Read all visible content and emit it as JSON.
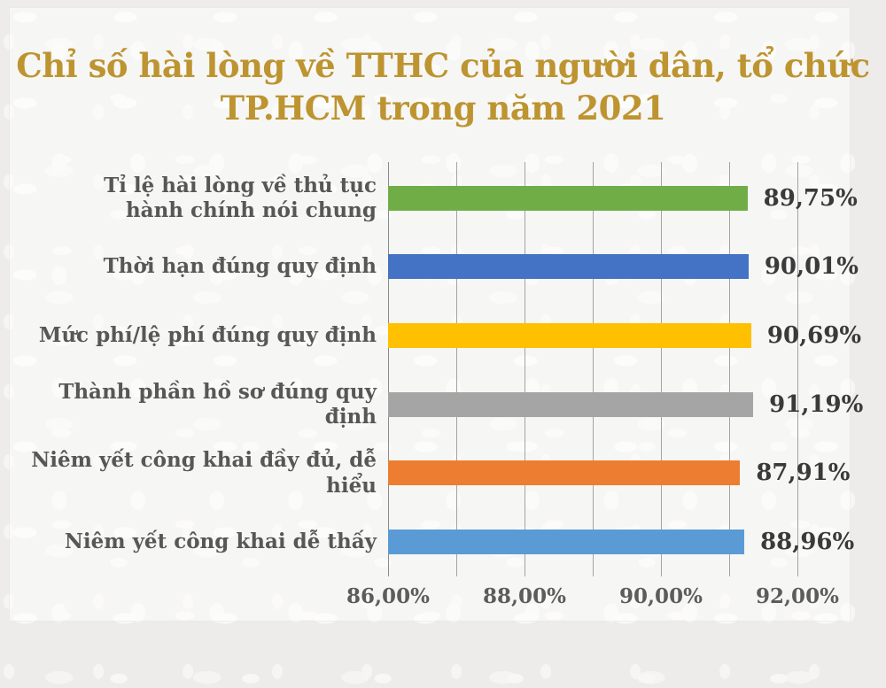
{
  "title": {
    "line1": "Chỉ số hài lòng về TTHC của người dân, tổ chức",
    "line2": "TP.HCM trong năm 2021"
  },
  "chart_data": {
    "type": "bar",
    "orientation": "horizontal",
    "title": "Chỉ số hài lòng về TTHC của người dân, tổ chức TP.HCM trong năm 2021",
    "categories": [
      "Tỉ lệ hài lòng về thủ tục hành chính nói chung",
      "Thời hạn đúng quy định",
      "Mức phí/lệ phí đúng quy định",
      "Thành phần hồ sơ đúng quy định",
      "Niêm yết công khai đầy đủ, dễ hiểu",
      "Niêm yết công khai dễ thấy"
    ],
    "values": [
      89.75,
      90.01,
      90.69,
      91.19,
      87.91,
      88.96
    ],
    "value_labels": [
      "89,75%",
      "90,01%",
      "90,69%",
      "91,19%",
      "87,91%",
      "88,96%"
    ],
    "bar_colors": [
      "#70AD47",
      "#4472C4",
      "#FFC000",
      "#A5A5A5",
      "#ED7D31",
      "#5B9BD5"
    ],
    "x_axis": {
      "min": 86,
      "max": 92,
      "gridline_step": 1,
      "tick_labels": [
        "86,00%",
        "88,00%",
        "90,00%",
        "92,00%"
      ],
      "tick_values": [
        86,
        88,
        90,
        92
      ]
    },
    "grid": true,
    "legend": false,
    "data_labels_position": "outside-end"
  },
  "styles": {
    "title_color": "#BD9430",
    "category_label_color": "#575757",
    "value_label_color": "#3a3a3a",
    "axis_label_color": "#5c5c5c",
    "gridline_color": "#a3a3a3",
    "axis_line_color": "#8a8a8a"
  }
}
